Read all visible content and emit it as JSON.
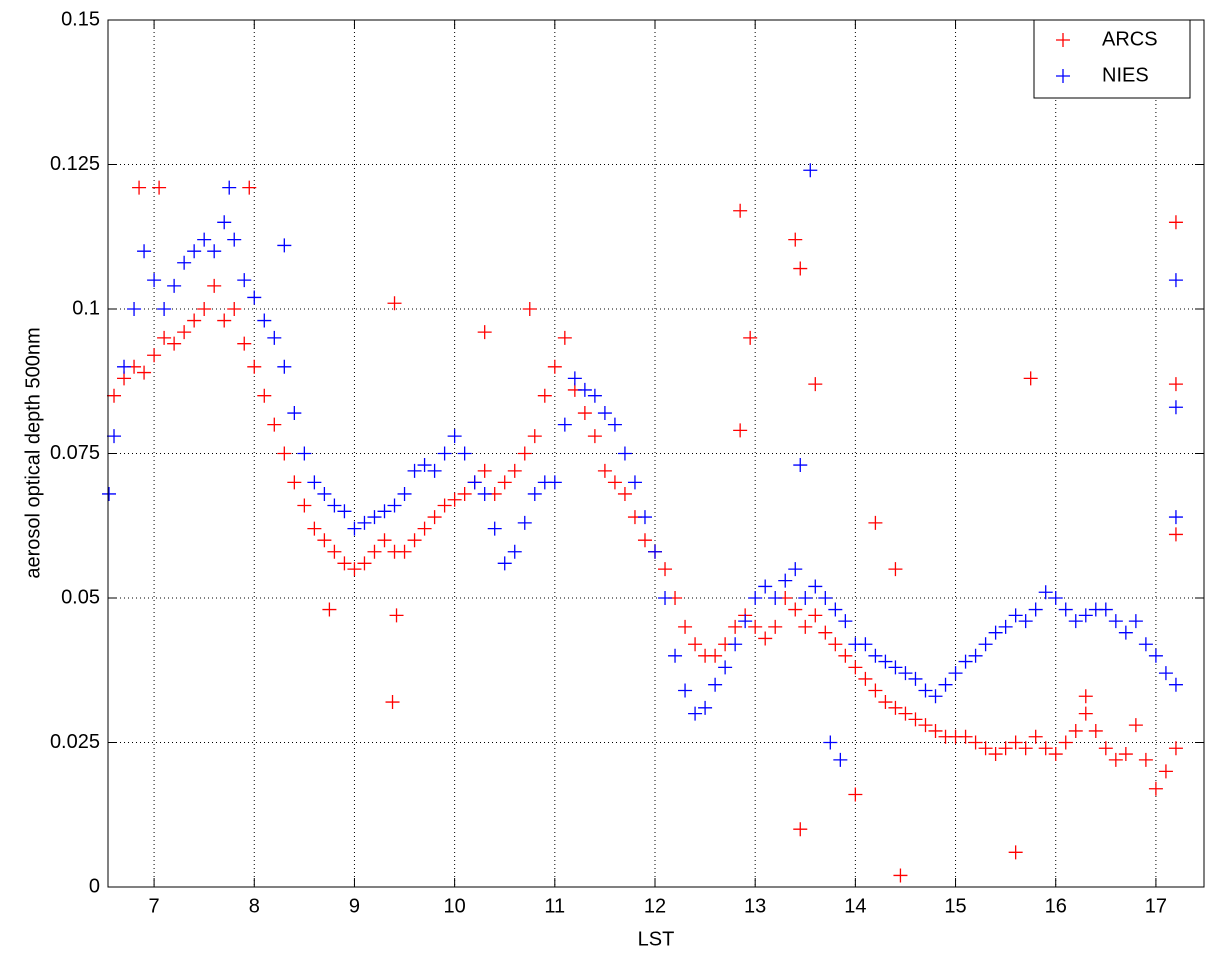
{
  "chart_data": {
    "type": "scatter",
    "xlabel": "LST",
    "ylabel": "aerosol optical depth 500nm",
    "xlim": [
      6.54,
      17.48
    ],
    "ylim": [
      0,
      0.15
    ],
    "xticks": [
      7,
      8,
      9,
      10,
      11,
      12,
      13,
      14,
      15,
      16,
      17
    ],
    "yticks": [
      0,
      0.025,
      0.05,
      0.075,
      0.1,
      0.125,
      0.15
    ],
    "grid": true,
    "legend": "upper right",
    "marker": "+",
    "series": [
      {
        "name": "ARCS",
        "color": "#ff0000",
        "x": [
          6.6,
          6.7,
          6.8,
          6.9,
          7.0,
          7.1,
          7.2,
          7.3,
          7.4,
          7.5,
          7.6,
          7.7,
          7.8,
          7.9,
          8.0,
          8.1,
          8.2,
          8.3,
          8.4,
          8.5,
          8.6,
          8.7,
          8.8,
          8.9,
          9.0,
          9.1,
          9.2,
          9.3,
          9.4,
          9.5,
          9.6,
          9.7,
          9.8,
          9.9,
          10.0,
          10.1,
          10.2,
          10.3,
          10.4,
          10.5,
          10.6,
          10.7,
          10.8,
          10.9,
          11.0,
          11.1,
          11.2,
          11.3,
          11.4,
          11.5,
          11.6,
          11.7,
          11.8,
          11.9,
          12.0,
          12.1,
          12.2,
          12.3,
          12.4,
          12.5,
          12.6,
          12.7,
          12.8,
          12.9,
          13.0,
          13.1,
          13.2,
          13.3,
          13.4,
          13.5,
          13.6,
          13.7,
          13.8,
          13.9,
          14.0,
          14.1,
          14.2,
          14.3,
          14.4,
          14.5,
          14.6,
          14.7,
          14.8,
          14.9,
          15.0,
          15.1,
          15.2,
          15.3,
          15.4,
          15.5,
          15.6,
          15.7,
          15.8,
          15.9,
          16.0,
          16.1,
          16.2,
          16.3,
          16.4,
          16.5,
          16.6,
          16.7,
          16.8,
          16.9,
          17.0,
          17.1,
          17.2,
          6.85,
          7.05,
          7.95,
          9.4,
          9.38,
          9.42,
          8.75,
          10.3,
          10.75,
          12.85,
          12.85,
          12.95,
          13.4,
          13.45,
          13.45,
          13.6,
          14.0,
          14.2,
          14.4,
          14.45,
          15.6,
          15.75,
          17.2,
          17.2,
          17.2,
          16.3
        ],
        "values": [
          0.085,
          0.088,
          0.09,
          0.089,
          0.092,
          0.095,
          0.094,
          0.096,
          0.098,
          0.1,
          0.104,
          0.098,
          0.1,
          0.094,
          0.09,
          0.085,
          0.08,
          0.075,
          0.07,
          0.066,
          0.062,
          0.06,
          0.058,
          0.056,
          0.055,
          0.056,
          0.058,
          0.06,
          0.058,
          0.058,
          0.06,
          0.062,
          0.064,
          0.066,
          0.067,
          0.068,
          0.07,
          0.072,
          0.068,
          0.07,
          0.072,
          0.075,
          0.078,
          0.085,
          0.09,
          0.095,
          0.086,
          0.082,
          0.078,
          0.072,
          0.07,
          0.068,
          0.064,
          0.06,
          0.058,
          0.055,
          0.05,
          0.045,
          0.042,
          0.04,
          0.04,
          0.042,
          0.045,
          0.047,
          0.045,
          0.043,
          0.045,
          0.05,
          0.048,
          0.045,
          0.047,
          0.044,
          0.042,
          0.04,
          0.038,
          0.036,
          0.034,
          0.032,
          0.031,
          0.03,
          0.029,
          0.028,
          0.027,
          0.026,
          0.026,
          0.026,
          0.025,
          0.024,
          0.023,
          0.024,
          0.025,
          0.024,
          0.026,
          0.024,
          0.023,
          0.025,
          0.027,
          0.03,
          0.027,
          0.024,
          0.022,
          0.023,
          0.028,
          0.022,
          0.017,
          0.02,
          0.024,
          0.121,
          0.121,
          0.121,
          0.101,
          0.032,
          0.047,
          0.048,
          0.096,
          0.1,
          0.117,
          0.079,
          0.095,
          0.112,
          0.107,
          0.01,
          0.087,
          0.016,
          0.063,
          0.055,
          0.002,
          0.006,
          0.088,
          0.115,
          0.087,
          0.061,
          0.033
        ]
      },
      {
        "name": "NIES",
        "color": "#0000ff",
        "x": [
          6.55,
          6.6,
          6.7,
          6.8,
          6.9,
          7.0,
          7.1,
          7.2,
          7.3,
          7.4,
          7.5,
          7.6,
          7.7,
          7.8,
          7.9,
          8.0,
          8.1,
          8.2,
          8.3,
          8.4,
          8.5,
          8.6,
          8.7,
          8.8,
          8.9,
          9.0,
          9.1,
          9.2,
          9.3,
          9.4,
          9.5,
          9.6,
          9.7,
          9.8,
          9.9,
          10.0,
          10.1,
          10.2,
          10.3,
          10.4,
          10.5,
          10.6,
          10.7,
          10.8,
          10.9,
          11.0,
          11.1,
          11.2,
          11.3,
          11.4,
          11.5,
          11.6,
          11.7,
          11.8,
          11.9,
          12.0,
          12.1,
          12.2,
          12.3,
          12.4,
          12.5,
          12.6,
          12.7,
          12.8,
          12.9,
          13.0,
          13.1,
          13.2,
          13.3,
          13.4,
          13.5,
          13.6,
          13.7,
          13.8,
          13.9,
          14.0,
          14.1,
          14.2,
          14.3,
          14.4,
          14.5,
          14.6,
          14.7,
          14.8,
          14.9,
          15.0,
          15.1,
          15.2,
          15.3,
          15.4,
          15.5,
          15.6,
          15.7,
          15.8,
          15.9,
          16.0,
          16.1,
          16.2,
          16.3,
          16.4,
          16.5,
          16.6,
          16.7,
          16.8,
          16.9,
          17.0,
          17.1,
          17.2,
          7.75,
          8.3,
          13.55,
          17.2,
          17.2,
          17.2,
          13.45,
          13.85,
          13.75
        ],
        "values": [
          0.068,
          0.078,
          0.09,
          0.1,
          0.11,
          0.105,
          0.1,
          0.104,
          0.108,
          0.11,
          0.112,
          0.11,
          0.115,
          0.112,
          0.105,
          0.102,
          0.098,
          0.095,
          0.09,
          0.082,
          0.075,
          0.07,
          0.068,
          0.066,
          0.065,
          0.062,
          0.063,
          0.064,
          0.065,
          0.066,
          0.068,
          0.072,
          0.073,
          0.072,
          0.075,
          0.078,
          0.075,
          0.07,
          0.068,
          0.062,
          0.056,
          0.058,
          0.063,
          0.068,
          0.07,
          0.07,
          0.08,
          0.088,
          0.086,
          0.085,
          0.082,
          0.08,
          0.075,
          0.07,
          0.064,
          0.058,
          0.05,
          0.04,
          0.034,
          0.03,
          0.031,
          0.035,
          0.038,
          0.042,
          0.046,
          0.05,
          0.052,
          0.05,
          0.053,
          0.055,
          0.05,
          0.052,
          0.05,
          0.048,
          0.046,
          0.042,
          0.042,
          0.04,
          0.039,
          0.038,
          0.037,
          0.036,
          0.034,
          0.033,
          0.035,
          0.037,
          0.039,
          0.04,
          0.042,
          0.044,
          0.045,
          0.047,
          0.046,
          0.048,
          0.051,
          0.05,
          0.048,
          0.046,
          0.047,
          0.048,
          0.048,
          0.046,
          0.044,
          0.046,
          0.042,
          0.04,
          0.037,
          0.035,
          0.121,
          0.111,
          0.124,
          0.105,
          0.083,
          0.064,
          0.073,
          0.022,
          0.025
        ]
      }
    ]
  }
}
